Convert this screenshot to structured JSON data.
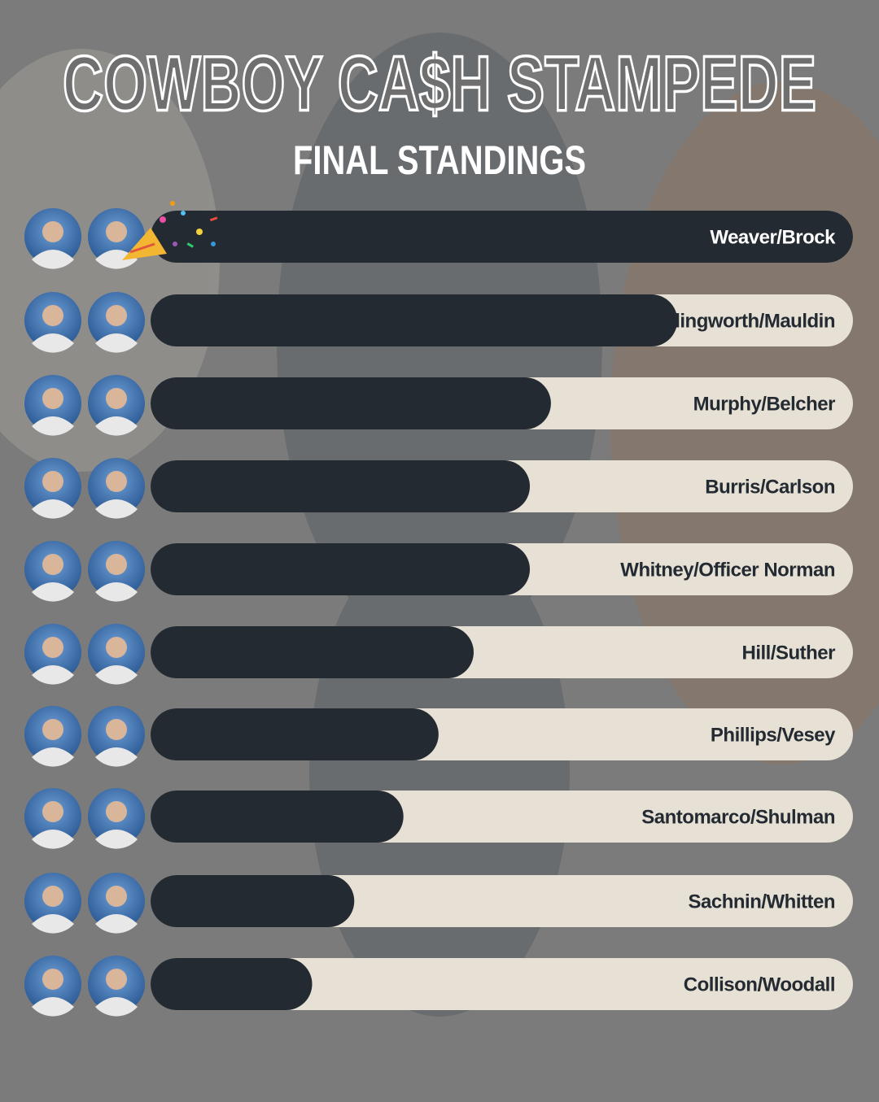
{
  "chart_data": {
    "type": "bar",
    "orientation": "horizontal",
    "title": "COWBOY CA$H STAMPEDE",
    "subtitle": "FINAL STANDINGS",
    "categories": [
      "Weaver/Brock",
      "Illingworth/Mauldin",
      "Murphy/Belcher",
      "Burris/Carlson",
      "Whitney/Officer Norman",
      "Hill/Suther",
      "Phillips/Vesey",
      "Santomarco/Shulman",
      "Sachnin/Whitten",
      "Collison/Woodall"
    ],
    "values": [
      100,
      75,
      57,
      54,
      54,
      46,
      41,
      36,
      29,
      23
    ],
    "xlim": [
      0,
      100
    ],
    "color": "#232a31",
    "track_color": "#e6e0d5"
  }
}
